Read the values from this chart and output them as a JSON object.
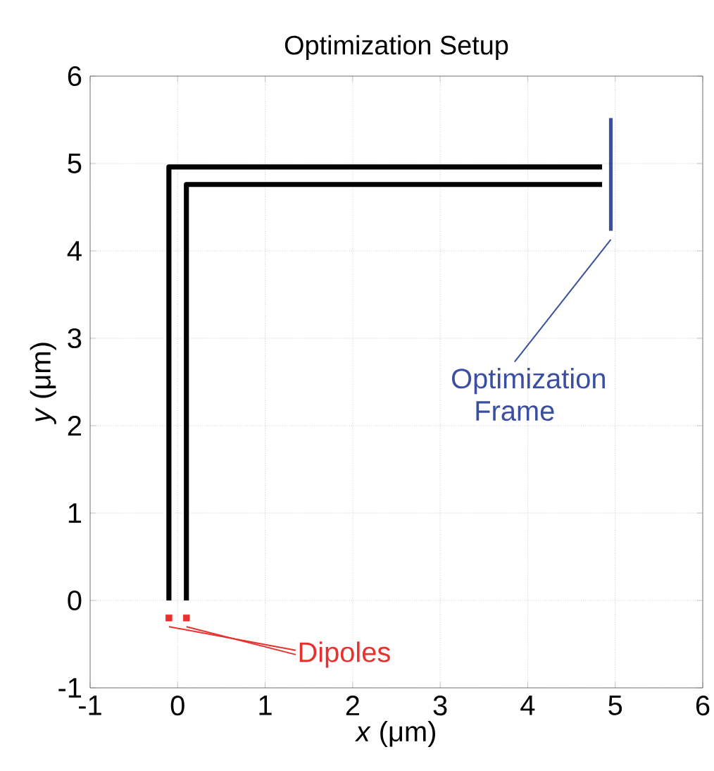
{
  "chart_data": {
    "type": "line",
    "title": "Optimization Setup",
    "xlabel": "*x* (μm)",
    "ylabel": "*y* (μm)",
    "xlim": [
      -1,
      6
    ],
    "ylim": [
      -1,
      6
    ],
    "xticks": [
      -1,
      0,
      1,
      2,
      3,
      4,
      5,
      6
    ],
    "yticks": [
      -1,
      0,
      1,
      2,
      3,
      4,
      5,
      6
    ],
    "grid": true,
    "legend": false,
    "marker": "none",
    "line_style": "solid",
    "series": [
      {
        "color": "#000000",
        "x": [
          -0.1,
          -0.1,
          4.85
        ],
        "values": [
          0,
          4.96,
          4.96
        ]
      },
      {
        "color": "#000000",
        "x": [
          0.1,
          0.1,
          4.85
        ],
        "values": [
          0,
          4.76,
          4.76
        ]
      },
      {
        "color": "#3b4fa0",
        "x": [
          4.95,
          4.95
        ],
        "values": [
          5.52,
          4.23
        ]
      },
      {
        "type": "scatter",
        "marker": "square",
        "color": "#e8312f",
        "x": [
          -0.1,
          0.1
        ],
        "values": [
          -0.2,
          -0.2
        ]
      }
    ],
    "annotations": [
      {
        "text": "Optimization Frame",
        "x": 4.95,
        "y": 4.23
      },
      {
        "text": "Dipoles",
        "x": -0.1,
        "y": -0.2
      }
    ]
  }
}
